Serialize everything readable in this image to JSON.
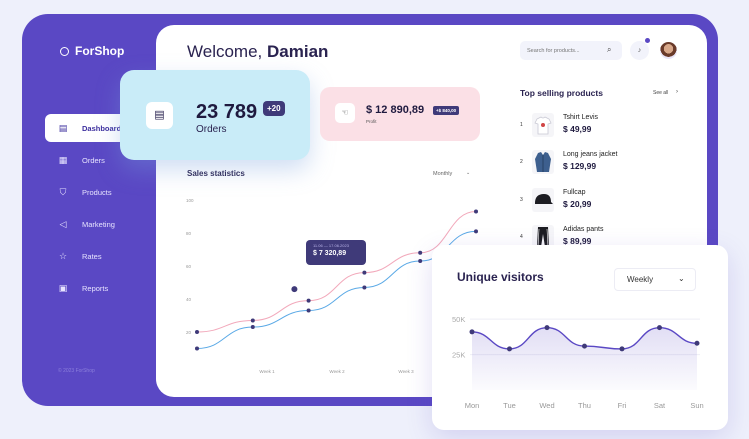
{
  "brand": {
    "name": "ForShop",
    "copyright": "© 2023 ForShop"
  },
  "sidebar": {
    "items": [
      {
        "label": "Dashboard",
        "icon": "calendar-icon",
        "active": true
      },
      {
        "label": "Orders",
        "icon": "document-icon",
        "active": false
      },
      {
        "label": "Products",
        "icon": "shirt-icon",
        "active": false
      },
      {
        "label": "Marketing",
        "icon": "megaphone-icon",
        "active": false
      },
      {
        "label": "Rates",
        "icon": "star-icon",
        "active": false
      },
      {
        "label": "Reports",
        "icon": "report-icon",
        "active": false
      }
    ]
  },
  "header": {
    "welcome_prefix": "Welcome,",
    "user_name": "Damian",
    "search_placeholder": "Search for products..."
  },
  "orders": {
    "value": "23 789",
    "badge": "+20",
    "label": "Orders"
  },
  "profit": {
    "value": "$ 12 890,89",
    "badge": "+$ 840,00",
    "label": "Profit"
  },
  "sales": {
    "title": "Sales statistics",
    "period": "Monthly",
    "tooltip_date": "11.06 — 17.06.2023",
    "tooltip_value": "$ 7 320,89",
    "y_ticks": [
      "100",
      "80",
      "60",
      "40",
      "20"
    ],
    "x_ticks": [
      "Week 1",
      "Week 2",
      "Week 3"
    ]
  },
  "top_selling": {
    "title": "Top selling products",
    "see_all": "See all",
    "items": [
      {
        "index": "1",
        "name": "Tshirt Levis",
        "price": "$ 49,99"
      },
      {
        "index": "2",
        "name": "Long jeans jacket",
        "price": "$ 129,99"
      },
      {
        "index": "3",
        "name": "Fullcap",
        "price": "$ 20,99"
      },
      {
        "index": "4",
        "name": "Adidas pants",
        "price": "$ 89,99"
      }
    ]
  },
  "visitors": {
    "title": "Unique visitors",
    "period": "Weekly",
    "y_ticks": [
      "50K",
      "25K"
    ],
    "days": [
      "Mon",
      "Tue",
      "Wed",
      "Thu",
      "Fri",
      "Sat",
      "Sun"
    ]
  },
  "chart_data": [
    {
      "type": "line",
      "title": "Sales statistics",
      "x": [
        1,
        2,
        3,
        4,
        5,
        6
      ],
      "ylim": [
        0,
        100
      ],
      "series": [
        {
          "values": [
            20,
            27,
            39,
            56,
            68,
            93
          ],
          "color": "#f2a9bb"
        },
        {
          "values": [
            10,
            23,
            33,
            47,
            63,
            81
          ],
          "color": "#5aa9e6"
        }
      ]
    },
    {
      "type": "area",
      "title": "Unique visitors",
      "categories": [
        "Mon",
        "Tue",
        "Wed",
        "Thu",
        "Fri",
        "Sat",
        "Sun"
      ],
      "ylim": [
        0,
        60000
      ],
      "series": [
        {
          "values": [
            41000,
            29000,
            44000,
            31000,
            29000,
            44000,
            33000
          ],
          "color": "#5a48c4"
        }
      ]
    }
  ],
  "colors": {
    "primary": "#5a48c4",
    "orders_card": "#c9ecf8",
    "profit_card": "#fbe0e6"
  }
}
